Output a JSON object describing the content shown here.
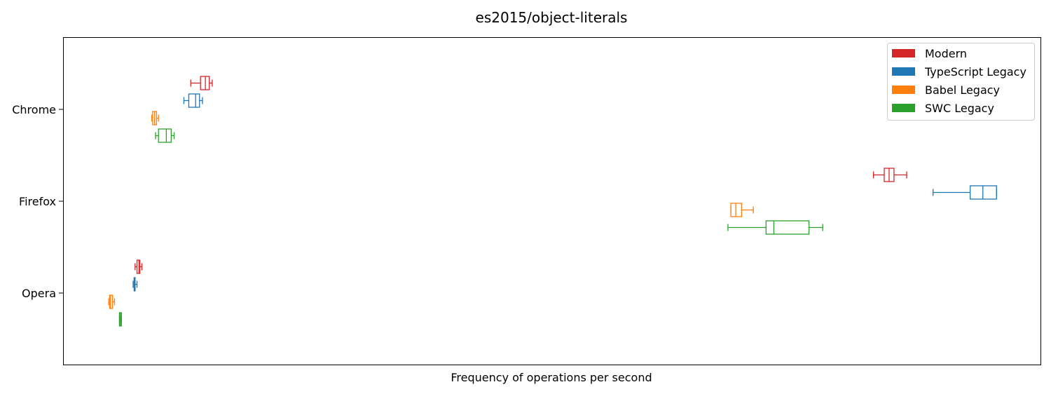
{
  "chart_data": {
    "type": "boxplot",
    "orientation": "horizontal",
    "title": "es2015/object-literals",
    "xlabel": "Frequency of operations per second",
    "ylabel": "",
    "x_tick_labels_shown": false,
    "xlim": [
      0,
      1000
    ],
    "categories": [
      "Chrome",
      "Firefox",
      "Opera"
    ],
    "legend_position": "top-right",
    "grid": false,
    "series": [
      {
        "name": "Modern",
        "color": "#d62728",
        "boxes": [
          {
            "category": "Chrome",
            "whislo": 130,
            "q1": 140,
            "med": 145,
            "q3": 149,
            "whishi": 152
          },
          {
            "category": "Firefox",
            "whislo": 829,
            "q1": 840,
            "med": 845,
            "q3": 850,
            "whishi": 863
          },
          {
            "category": "Opera",
            "whislo": 73,
            "q1": 75,
            "med": 77,
            "q3": 78,
            "whishi": 80
          }
        ]
      },
      {
        "name": "TypeScript Legacy",
        "color": "#1f77b4",
        "boxes": [
          {
            "category": "Chrome",
            "whislo": 123,
            "q1": 128,
            "med": 135,
            "q3": 139,
            "whishi": 142
          },
          {
            "category": "Firefox",
            "whislo": 890,
            "q1": 928,
            "med": 941,
            "q3": 955,
            "whishi": 955
          },
          {
            "category": "Opera",
            "whislo": 71,
            "q1": 72,
            "med": 73,
            "q3": 73,
            "whishi": 75
          }
        ]
      },
      {
        "name": "Babel Legacy",
        "color": "#ff7f0e",
        "boxes": [
          {
            "category": "Chrome",
            "whislo": 90,
            "q1": 91,
            "med": 93,
            "q3": 95,
            "whishi": 97
          },
          {
            "category": "Firefox",
            "whislo": 683,
            "q1": 683,
            "med": 688,
            "q3": 694,
            "whishi": 706
          },
          {
            "category": "Opera",
            "whislo": 46,
            "q1": 47,
            "med": 48,
            "q3": 50,
            "whishi": 52
          }
        ]
      },
      {
        "name": "SWC Legacy",
        "color": "#2ca02c",
        "boxes": [
          {
            "category": "Chrome",
            "whislo": 94,
            "q1": 97,
            "med": 105,
            "q3": 110,
            "whishi": 113
          },
          {
            "category": "Firefox",
            "whislo": 680,
            "q1": 719,
            "med": 727,
            "q3": 763,
            "whishi": 777
          },
          {
            "category": "Opera",
            "whislo": 57,
            "q1": 57,
            "med": 58,
            "q3": 59,
            "whishi": 59
          }
        ]
      }
    ]
  }
}
